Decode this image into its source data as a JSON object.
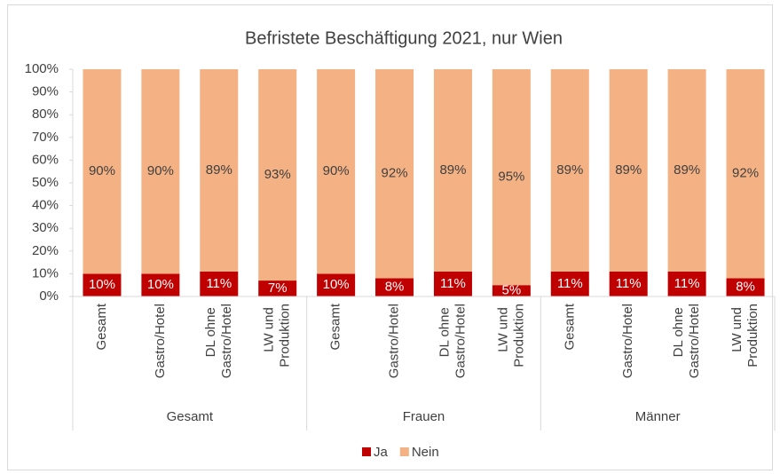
{
  "chart_data": {
    "type": "stacked_bar_100",
    "title": "Befristete Beschäftigung 2021, nur Wien",
    "groups": [
      {
        "name": "Gesamt",
        "categories": [
          "Gesamt",
          "Gastro/Hotel",
          "DL ohne Gastro/Hotel",
          "LW und Produktion"
        ]
      },
      {
        "name": "Frauen",
        "categories": [
          "Gesamt",
          "Gastro/Hotel",
          "DL ohne Gastro/Hotel",
          "LW und Produktion"
        ]
      },
      {
        "name": "Männer",
        "categories": [
          "Gesamt",
          "Gastro/Hotel",
          "DL ohne Gastro/Hotel",
          "LW und Produktion"
        ]
      }
    ],
    "series": [
      {
        "name": "Ja",
        "color": "#c00000",
        "label_color": "#ffffff",
        "values": [
          10,
          10,
          11,
          7,
          10,
          8,
          11,
          5,
          11,
          11,
          11,
          8
        ],
        "value_labels": [
          "10%",
          "10%",
          "11%",
          "7%",
          "10%",
          "8%",
          "11%",
          "5%",
          "11%",
          "11%",
          "11%",
          "8%"
        ]
      },
      {
        "name": "Nein",
        "color": "#f4b183",
        "label_color": "#404040",
        "values": [
          90,
          90,
          89,
          93,
          90,
          92,
          89,
          95,
          89,
          89,
          89,
          92
        ],
        "value_labels": [
          "90%",
          "90%",
          "89%",
          "93%",
          "90%",
          "92%",
          "89%",
          "95%",
          "89%",
          "89%",
          "89%",
          "92%"
        ]
      }
    ],
    "ylim": [
      0,
      100
    ],
    "yticks": [
      {
        "value": 0,
        "label": "0%"
      },
      {
        "value": 10,
        "label": "10%"
      },
      {
        "value": 20,
        "label": "20%"
      },
      {
        "value": 30,
        "label": "30%"
      },
      {
        "value": 40,
        "label": "40%"
      },
      {
        "value": 50,
        "label": "50%"
      },
      {
        "value": 60,
        "label": "60%"
      },
      {
        "value": 70,
        "label": "70%"
      },
      {
        "value": 80,
        "label": "80%"
      },
      {
        "value": 90,
        "label": "90%"
      },
      {
        "value": 100,
        "label": "100%"
      }
    ],
    "legend": "bottom"
  }
}
